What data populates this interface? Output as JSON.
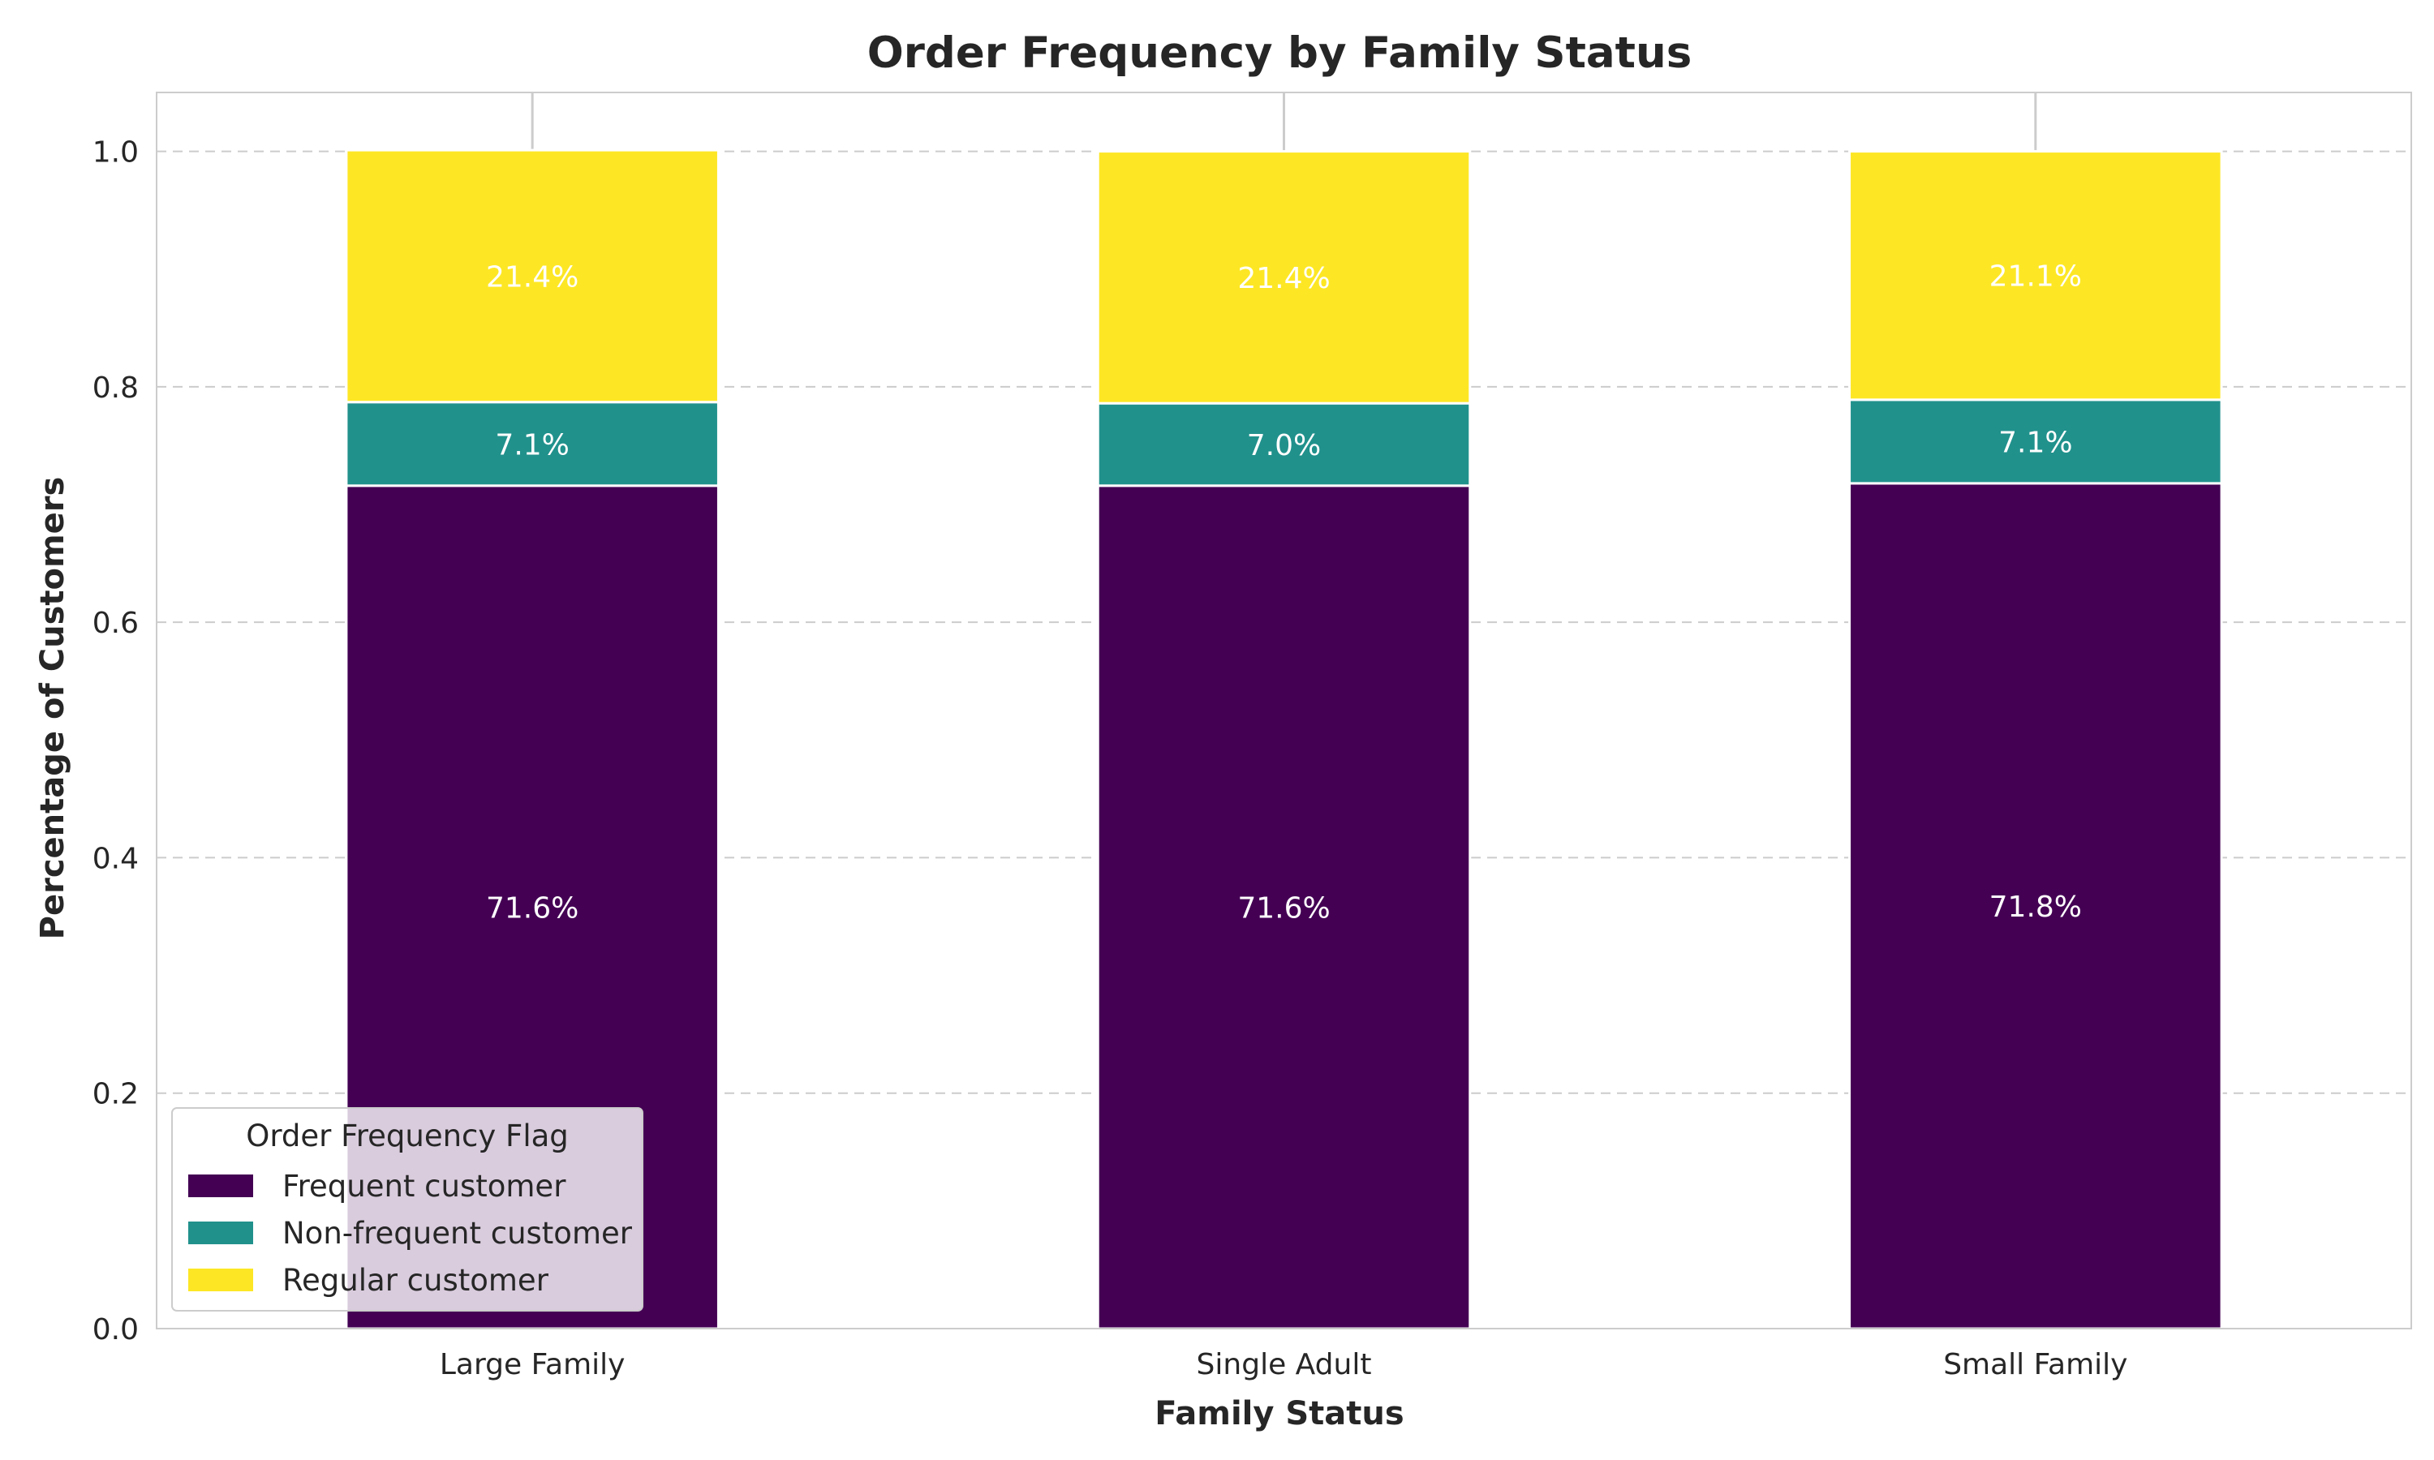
{
  "chart_data": {
    "type": "bar",
    "stacked": true,
    "title": "Order Frequency by Family Status",
    "xlabel": "Family Status",
    "ylabel": "Percentage of Customers",
    "categories": [
      "Large Family",
      "Single Adult",
      "Small Family"
    ],
    "ylim": [
      0,
      1.05
    ],
    "yticks": [
      0.0,
      0.2,
      0.4,
      0.6,
      0.8,
      1.0
    ],
    "ytick_labels": [
      "0.0",
      "0.2",
      "0.4",
      "0.6",
      "0.8",
      "1.0"
    ],
    "grid": true,
    "legend_title": "Order Frequency Flag",
    "legend_position": "lower-left",
    "series": [
      {
        "name": "Frequent customer",
        "color": "#440154",
        "values": [
          0.716,
          0.716,
          0.718
        ],
        "labels": [
          "71.6%",
          "71.6%",
          "71.8%"
        ]
      },
      {
        "name": "Non-frequent customer",
        "color": "#21918c",
        "values": [
          0.071,
          0.07,
          0.071
        ],
        "labels": [
          "7.1%",
          "7.0%",
          "7.1%"
        ]
      },
      {
        "name": "Regular customer",
        "color": "#fde725",
        "values": [
          0.214,
          0.214,
          0.211
        ],
        "labels": [
          "21.4%",
          "21.4%",
          "21.1%"
        ]
      }
    ]
  }
}
